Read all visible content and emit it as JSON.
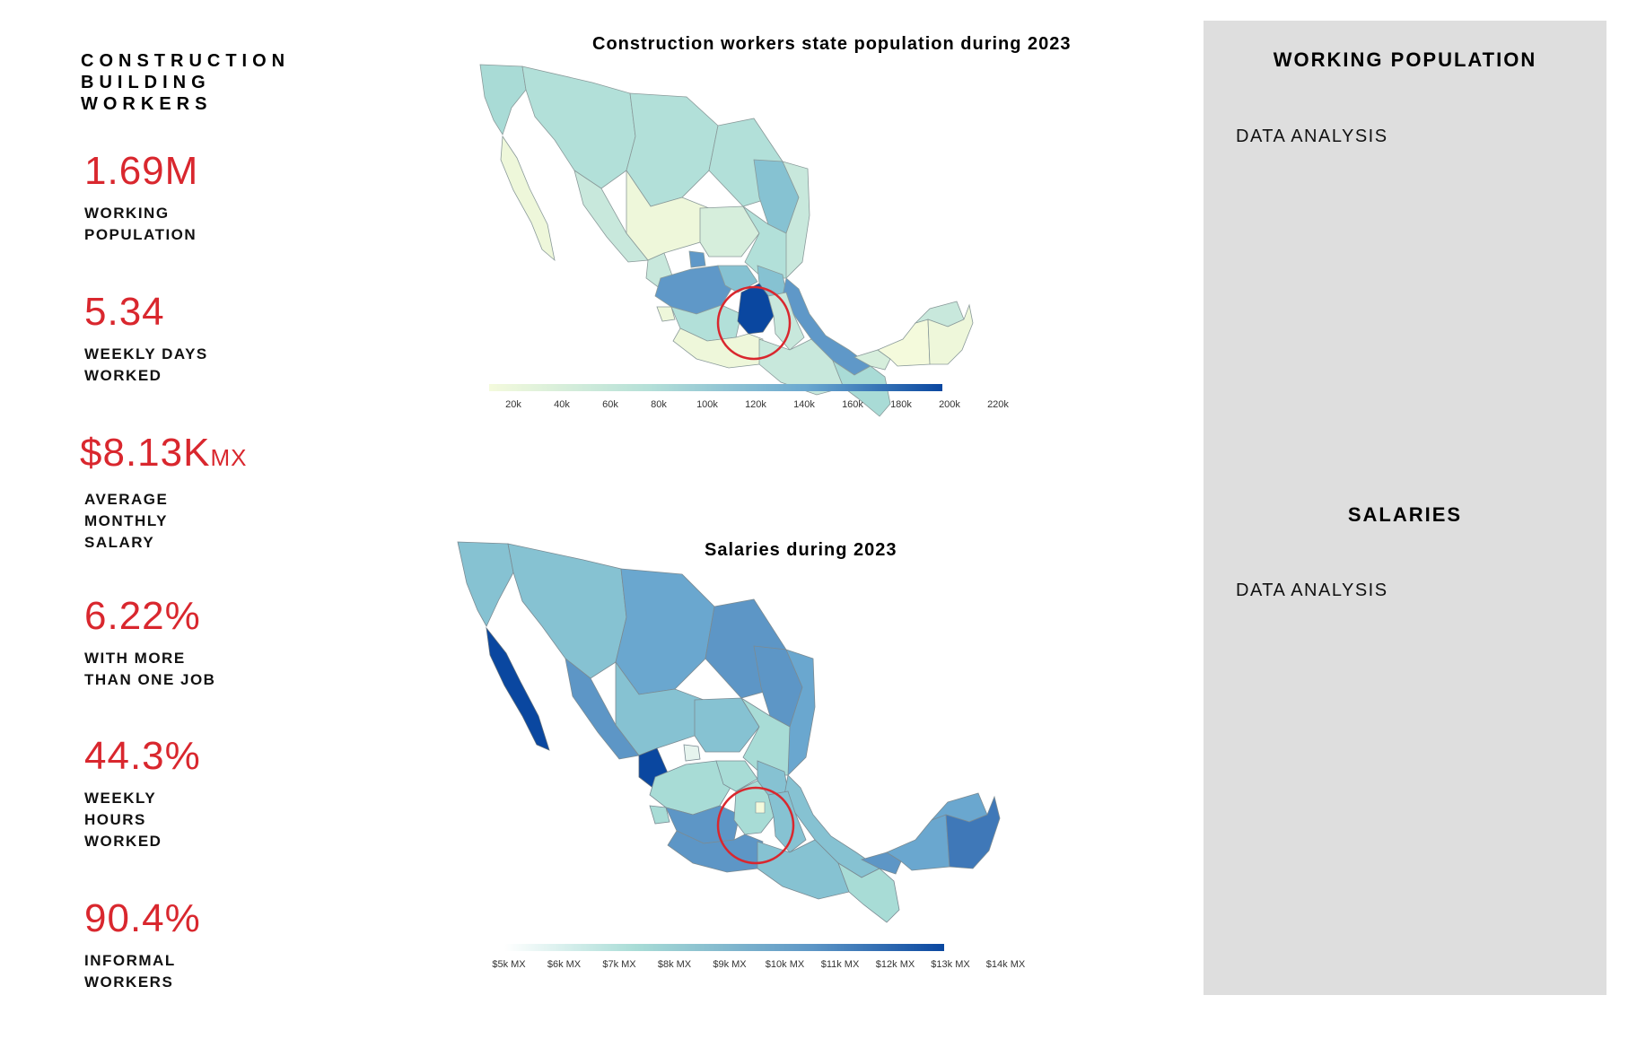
{
  "brand": {
    "lines": [
      "CONSTRUCTION",
      "BUILDING",
      "WORKERS"
    ]
  },
  "stats": [
    {
      "value": "1.69M",
      "unit": "",
      "label_lines": [
        "WORKING",
        "POPULATION"
      ]
    },
    {
      "value": "5.34",
      "unit": "",
      "label_lines": [
        "WEEKLY DAYS",
        "WORKED"
      ]
    },
    {
      "value": "$8.13K",
      "unit": "MX",
      "label_lines": [
        "AVERAGE",
        "MONTHLY",
        "SALARY"
      ]
    },
    {
      "value": "6.22%",
      "unit": "",
      "label_lines": [
        "WITH MORE",
        "THAN ONE JOB"
      ]
    },
    {
      "value": "44.3%",
      "unit": "",
      "label_lines": [
        "WEEKLY",
        "HOURS",
        "WORKED"
      ]
    },
    {
      "value": "90.4%",
      "unit": "",
      "label_lines": [
        "INFORMAL",
        "WORKERS"
      ]
    }
  ],
  "maps": {
    "population": {
      "title": "Construction workers state population during 2023",
      "scale_labels": [
        "20k",
        "40k",
        "60k",
        "80k",
        "100k",
        "120k",
        "140k",
        "160k",
        "180k",
        "200k",
        "220k"
      ]
    },
    "salaries": {
      "title": "Salaries during 2023",
      "scale_labels": [
        "$5k MX",
        "$6k MX",
        "$7k MX",
        "$8k MX",
        "$9k MX",
        "$10k MX",
        "$11k MX",
        "$12k MX",
        "$13k MX",
        "$14k MX"
      ]
    }
  },
  "sidebar": {
    "sections": [
      {
        "heading": "WORKING POPULATION",
        "body": "DATA ANALYSIS"
      },
      {
        "heading": "SALARIES",
        "body": "DATA ANALYSIS"
      }
    ]
  },
  "colors": {
    "accent_red": "#d9272e",
    "scale_light": "#f4fadc",
    "scale_mid": "#7cc1c9",
    "scale_dark": "#0a47a0",
    "sidebar_bg": "#dedede"
  }
}
